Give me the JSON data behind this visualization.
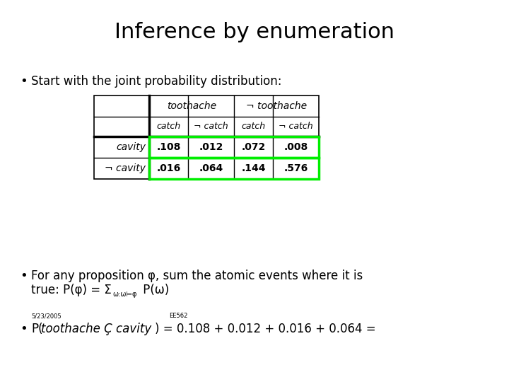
{
  "title": "Inference by enumeration",
  "bullet1": "Start with the joint probability distribution:",
  "bullet2_line1": "For any proposition φ, sum the atomic events where it is",
  "bullet2_line2_pre": "true: P(φ) = Σ",
  "bullet2_line2_sub": "ω:ω⊨φ",
  "bullet2_line2_post": " P(ω)",
  "small_text1": "5/23/2005",
  "small_text2": "EE562",
  "bullet3_p": "P(",
  "bullet3_italic": "toothache Ç cavity",
  "bullet3_rest": ") = 0.108 + 0.012 + 0.016 + 0.064 =",
  "table_header1_left": "toothache",
  "table_header1_right": "¬ toothache",
  "table_header2": [
    "catch",
    "¬ catch",
    "catch",
    "¬ catch"
  ],
  "table_row1_label": "cavity",
  "table_row2_label": "¬ cavity",
  "table_row1_values": [
    ".108",
    ".012",
    ".072",
    ".008"
  ],
  "table_row2_values": [
    ".016",
    ".064",
    ".144",
    ".576"
  ],
  "bg_color": "#ffffff",
  "text_color": "#000000",
  "green_color": "#00ee00",
  "title_fontsize": 22,
  "body_fontsize": 12,
  "small_fontsize": 6,
  "table_fontsize": 10,
  "sub_fontsize": 7
}
